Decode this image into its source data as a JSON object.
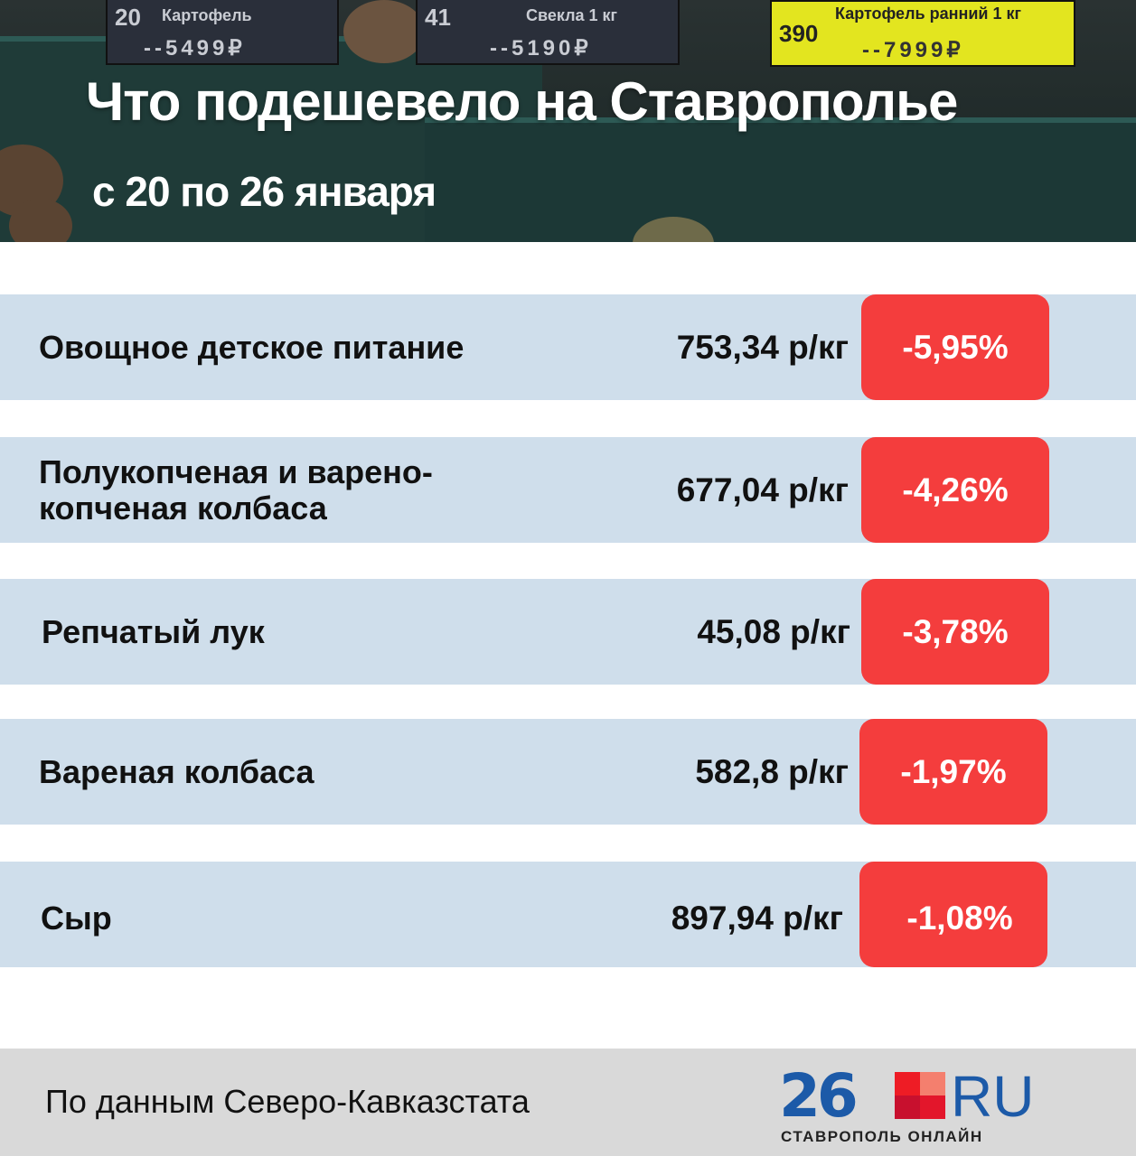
{
  "header": {
    "title": "Что подешевело на Ставрополье",
    "subtitle": "с 20 по 26 января",
    "photo_tags": [
      {
        "number": "20",
        "name": "Картофель",
        "price": "--5499₽"
      },
      {
        "number": "41",
        "name": "Свекла 1 кг",
        "price": "--5190₽"
      },
      {
        "number": "390",
        "name": "Картофель ранний 1 кг",
        "price": "--7999₽"
      }
    ]
  },
  "rows": [
    {
      "name": "Овощное детское питание",
      "price": "753,34 р/кг",
      "change": "-5,95%"
    },
    {
      "name": "Полукопченая и варено-копченая колбаса",
      "price": "677,04 р/кг",
      "change": "-4,26%"
    },
    {
      "name": "Репчатый лук",
      "price": "45,08 р/кг",
      "change": "-3,78%"
    },
    {
      "name": "Вареная колбаса",
      "price": "582,8 р/кг",
      "change": "-1,97%"
    },
    {
      "name": "Сыр",
      "price": "897,94 р/кг",
      "change": "-1,08%"
    }
  ],
  "footer": {
    "source": "По данным Северо-Кавказстата",
    "logo_number": "26",
    "logo_domain": "RU",
    "logo_tagline": "СТАВРОПОЛЬ ОНЛАЙН"
  },
  "colors": {
    "row_bg": "#cfdeeb",
    "badge": "#f43d3d",
    "brand_blue": "#1c5aa8",
    "footer_bg": "#d9d9d9"
  }
}
